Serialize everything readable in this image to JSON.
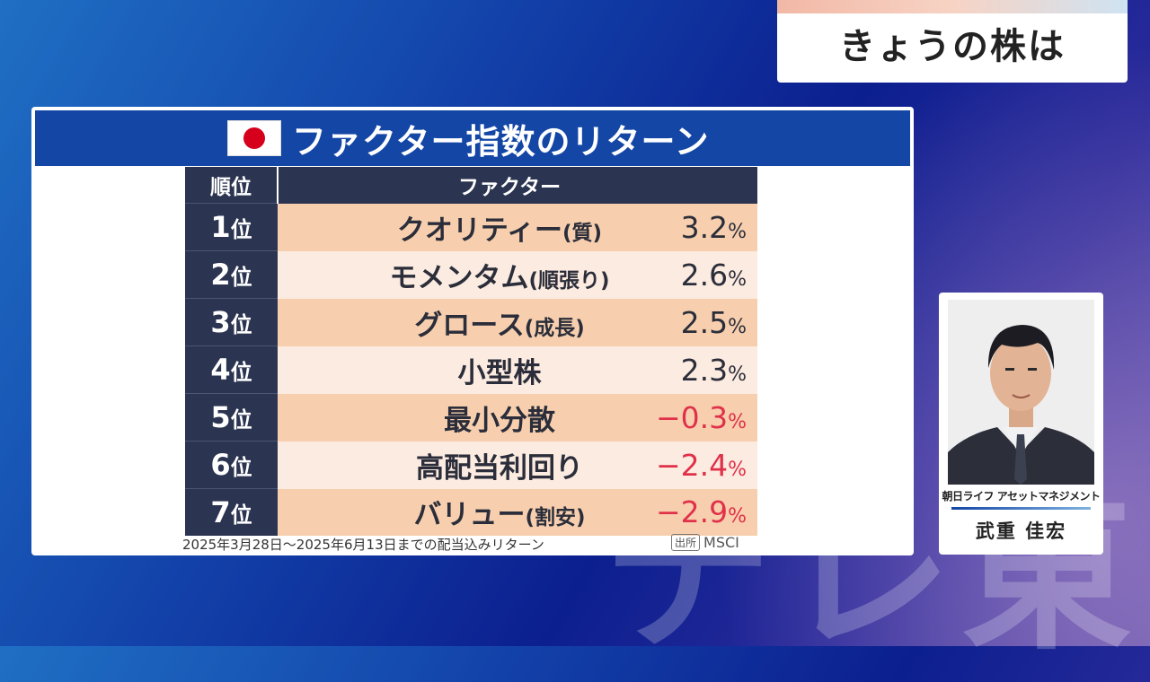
{
  "caption": {
    "text": "きょうの株は"
  },
  "panel": {
    "title": "ファクター指数のリターン",
    "flag": "japan-flag",
    "headers": {
      "rank": "順位",
      "factor": "ファクター"
    },
    "rows": [
      {
        "rank": "1",
        "unit": "位",
        "name": "クオリティー",
        "sub": "(質)",
        "value": "3.2",
        "pct": "%",
        "negative": false
      },
      {
        "rank": "2",
        "unit": "位",
        "name": "モメンタム",
        "sub": "(順張り)",
        "value": "2.6",
        "pct": "%",
        "negative": false
      },
      {
        "rank": "3",
        "unit": "位",
        "name": "グロース",
        "sub": "(成長)",
        "value": "2.5",
        "pct": "%",
        "negative": false
      },
      {
        "rank": "4",
        "unit": "位",
        "name": "小型株",
        "sub": "",
        "value": "2.3",
        "pct": "%",
        "negative": false
      },
      {
        "rank": "5",
        "unit": "位",
        "name": "最小分散",
        "sub": "",
        "value": "−0.3",
        "pct": "%",
        "negative": true
      },
      {
        "rank": "6",
        "unit": "位",
        "name": "高配当利回り",
        "sub": "",
        "value": "−2.4",
        "pct": "%",
        "negative": true
      },
      {
        "rank": "7",
        "unit": "位",
        "name": "バリュー",
        "sub": "(割安)",
        "value": "−2.9",
        "pct": "%",
        "negative": true
      }
    ],
    "footnote": "2025年3月28日〜2025年6月13日までの配当込みリターン",
    "source_badge": "出所",
    "source": "MSCI"
  },
  "commentator": {
    "company": "朝日ライフ アセットマネジメント",
    "name": "武重 佳宏"
  },
  "watermark": "テレ東",
  "colors": {
    "header_blue": "#1446a6",
    "rank_navy": "#2b3450",
    "row_odd": "#f7cfae",
    "row_even": "#fcebe0",
    "negative": "#e0314a"
  }
}
